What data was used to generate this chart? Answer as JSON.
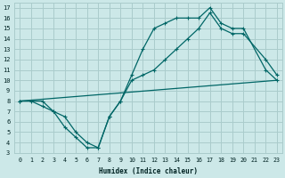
{
  "xlabel": "Humidex (Indice chaleur)",
  "bg_color": "#cce8e8",
  "grid_color": "#aacccc",
  "line_color": "#006666",
  "xlim": [
    -0.5,
    23.5
  ],
  "ylim": [
    3,
    17.5
  ],
  "xticks": [
    0,
    1,
    2,
    3,
    4,
    5,
    6,
    7,
    8,
    9,
    10,
    11,
    12,
    13,
    14,
    15,
    16,
    17,
    18,
    19,
    20,
    21,
    22,
    23
  ],
  "yticks": [
    3,
    4,
    5,
    6,
    7,
    8,
    9,
    10,
    11,
    12,
    13,
    14,
    15,
    16,
    17
  ],
  "curve1_x": [
    0,
    23
  ],
  "curve1_y": [
    8,
    10
  ],
  "curve2_x": [
    0,
    1,
    2,
    3,
    4,
    5,
    6,
    7,
    8,
    9,
    10,
    11,
    12,
    13,
    14,
    15,
    16,
    17,
    18,
    19,
    20,
    22,
    23
  ],
  "curve2_y": [
    8,
    8,
    7.5,
    7,
    5.5,
    4.5,
    3.5,
    3.5,
    6.5,
    8,
    10.5,
    13,
    15,
    15.5,
    16,
    16,
    16,
    17,
    15.5,
    15,
    15,
    11,
    10
  ],
  "curve3_x": [
    0,
    2,
    3,
    4,
    5,
    6,
    7,
    8,
    9,
    10,
    11,
    12,
    13,
    14,
    15,
    16,
    17,
    18,
    19,
    20,
    22,
    23
  ],
  "curve3_y": [
    8,
    8,
    7,
    6.5,
    5,
    4,
    3.5,
    6.5,
    8,
    10,
    10.5,
    11,
    12,
    13,
    14,
    15,
    16.5,
    15,
    14.5,
    14.5,
    12,
    10.5
  ]
}
